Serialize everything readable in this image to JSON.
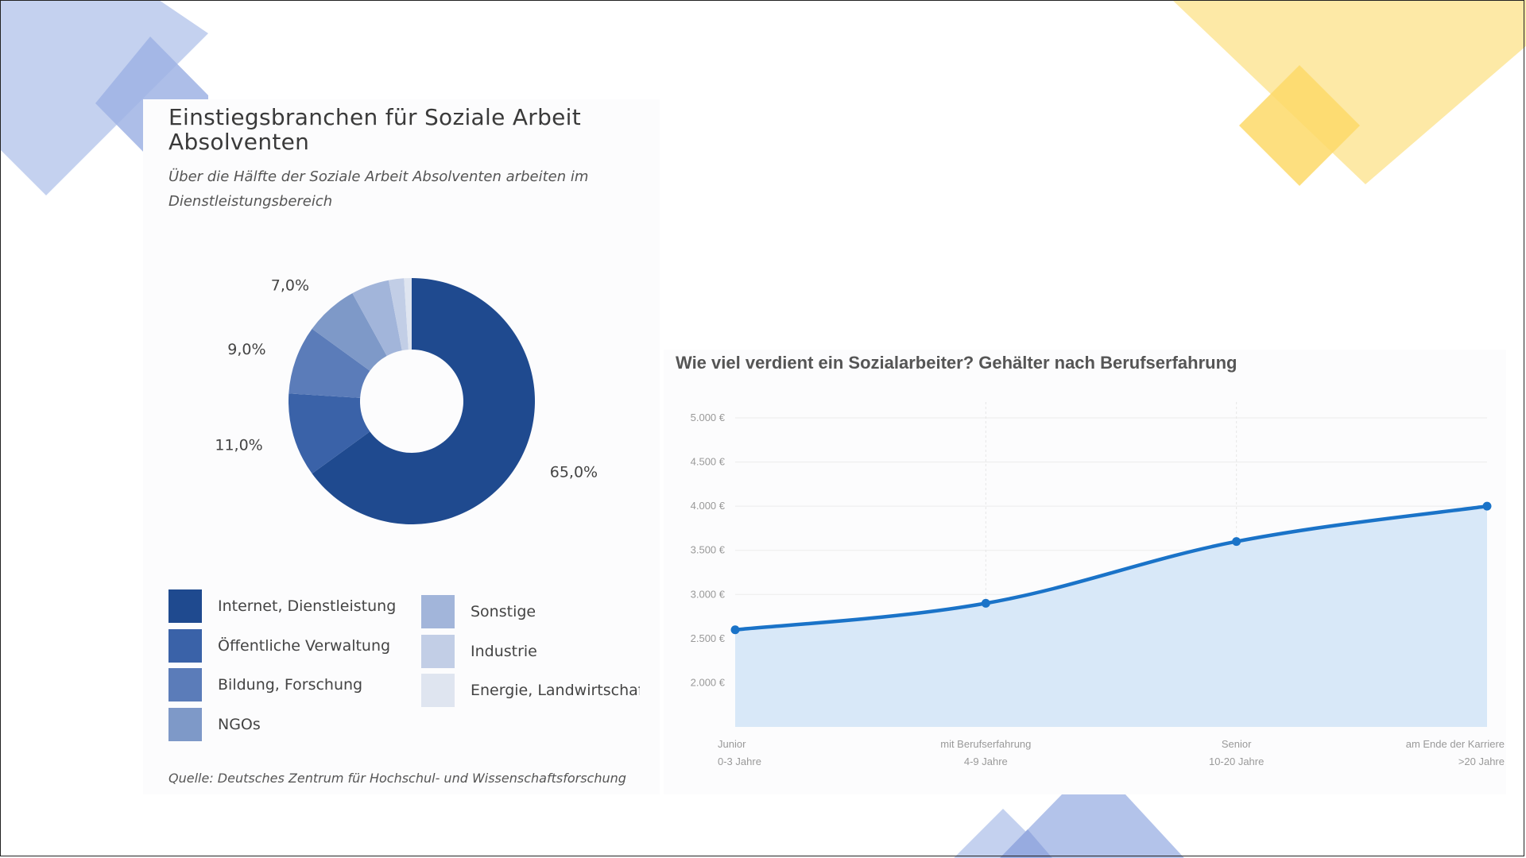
{
  "colors": {
    "deco_blue": "#a9bde9",
    "deco_blue_dark": "#8aa3de",
    "deco_yellow": "#fde9a6",
    "deco_yellow_dark": "#fdd968",
    "line": "#1a73c8",
    "area": "#d8e8f8"
  },
  "chart_data": [
    {
      "type": "pie",
      "title": "Einstiegsbranchen für Soziale Arbeit Absolventen",
      "subtitle": "Über die Hälfte der Soziale Arbeit Absolventen arbeiten im Dienstleistungsbereich",
      "source": "Quelle: Deutsches Zentrum für Hochschul- und Wissenschaftsforschung",
      "donut": true,
      "slices": [
        {
          "label": "Internet, Dienstleistung",
          "value": 65.0,
          "display": "65,0%",
          "color": "#1f4a8f"
        },
        {
          "label": "Öffentliche Verwaltung",
          "value": 11.0,
          "display": "11,0%",
          "color": "#3a62a8"
        },
        {
          "label": "Bildung, Forschung",
          "value": 9.0,
          "display": "9,0%",
          "color": "#5b7cb9"
        },
        {
          "label": "NGOs",
          "value": 7.0,
          "display": "7,0%",
          "color": "#7e99c8"
        },
        {
          "label": "Sonstige",
          "value": 5.0,
          "display": "",
          "color": "#a2b5da"
        },
        {
          "label": "Industrie",
          "value": 2.0,
          "display": "",
          "color": "#c2cee6"
        },
        {
          "label": "Energie, Landwirtschaft",
          "value": 1.0,
          "display": "",
          "color": "#dfe5f0"
        }
      ],
      "legend": "bottom"
    },
    {
      "type": "area",
      "title": "Wie viel verdient ein Sozialarbeiter? Gehälter nach Berufserfahrung",
      "categories": [
        {
          "line1": "Junior",
          "line2": "0-3 Jahre"
        },
        {
          "line1": "mit Berufserfahrung",
          "line2": "4-9 Jahre"
        },
        {
          "line1": "Senior",
          "line2": "10-20 Jahre"
        },
        {
          "line1": "am Ende der Karriere",
          "line2": ">20 Jahre"
        }
      ],
      "values": [
        2600,
        2900,
        3600,
        4000
      ],
      "ylim": [
        1500,
        5000
      ],
      "yticks": [
        {
          "value": 2000,
          "label": "2.000 €"
        },
        {
          "value": 2500,
          "label": "2.500 €"
        },
        {
          "value": 3000,
          "label": "3.000 €"
        },
        {
          "value": 3500,
          "label": "3.500 €"
        },
        {
          "value": 4000,
          "label": "4.000 €"
        },
        {
          "value": 4500,
          "label": "4.500 €"
        },
        {
          "value": 5000,
          "label": "5.000 €"
        }
      ],
      "grid": true
    }
  ]
}
